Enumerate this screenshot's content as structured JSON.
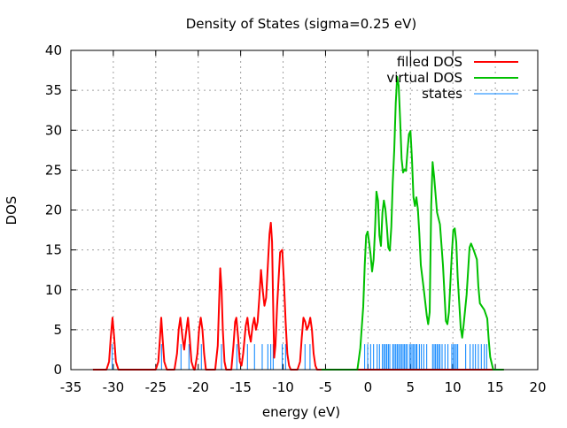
{
  "chart_data": {
    "type": "line",
    "title": "Density of States (sigma=0.25 eV)",
    "xlabel": "energy (eV)",
    "ylabel": "DOS",
    "xlim": [
      -35,
      20
    ],
    "ylim": [
      0,
      40
    ],
    "xticks": [
      -35,
      -30,
      -25,
      -20,
      -15,
      -10,
      -5,
      0,
      5,
      10,
      15,
      20
    ],
    "yticks": [
      0,
      5,
      10,
      15,
      20,
      25,
      30,
      35,
      40
    ],
    "grid": true,
    "legend_position": "top-right",
    "series": [
      {
        "name": "filled DOS",
        "color": "#ff0000",
        "kind": "line",
        "points": [
          [
            -32.4,
            0
          ],
          [
            -30.8,
            0
          ],
          [
            -30.5,
            1
          ],
          [
            -30.3,
            4
          ],
          [
            -30.1,
            6.5
          ],
          [
            -29.9,
            4
          ],
          [
            -29.7,
            1
          ],
          [
            -29.4,
            0
          ],
          [
            -25,
            0
          ],
          [
            -24.7,
            1
          ],
          [
            -24.5,
            4
          ],
          [
            -24.35,
            6.5
          ],
          [
            -24.2,
            4
          ],
          [
            -24.0,
            1
          ],
          [
            -23.7,
            0
          ],
          [
            -22.8,
            0
          ],
          [
            -22.5,
            2
          ],
          [
            -22.3,
            5
          ],
          [
            -22.1,
            6.5
          ],
          [
            -21.85,
            4
          ],
          [
            -21.65,
            2.5
          ],
          [
            -21.45,
            4.5
          ],
          [
            -21.2,
            6.5
          ],
          [
            -21.0,
            4
          ],
          [
            -20.8,
            1
          ],
          [
            -20.5,
            0
          ],
          [
            -20.4,
            0
          ],
          [
            -20.1,
            2
          ],
          [
            -19.9,
            5
          ],
          [
            -19.7,
            6.5
          ],
          [
            -19.5,
            5
          ],
          [
            -19.3,
            2
          ],
          [
            -19.1,
            0
          ],
          [
            -18.0,
            0
          ],
          [
            -17.7,
            3
          ],
          [
            -17.55,
            8
          ],
          [
            -17.4,
            12.7
          ],
          [
            -17.25,
            10
          ],
          [
            -17.1,
            5
          ],
          [
            -16.9,
            1
          ],
          [
            -16.7,
            0
          ],
          [
            -16.1,
            0
          ],
          [
            -15.85,
            3
          ],
          [
            -15.65,
            6
          ],
          [
            -15.5,
            6.5
          ],
          [
            -15.3,
            4
          ],
          [
            -15.1,
            1
          ],
          [
            -14.9,
            0.5
          ],
          [
            -14.7,
            2
          ],
          [
            -14.4,
            5.5
          ],
          [
            -14.2,
            6.5
          ],
          [
            -14.0,
            4.5
          ],
          [
            -13.8,
            3.5
          ],
          [
            -13.6,
            5.5
          ],
          [
            -13.4,
            6.5
          ],
          [
            -13.2,
            5
          ],
          [
            -13.0,
            6
          ],
          [
            -12.8,
            9
          ],
          [
            -12.6,
            12.5
          ],
          [
            -12.4,
            10
          ],
          [
            -12.2,
            8
          ],
          [
            -12.0,
            9
          ],
          [
            -11.8,
            13
          ],
          [
            -11.6,
            17
          ],
          [
            -11.45,
            18.4
          ],
          [
            -11.3,
            16
          ],
          [
            -11.2,
            10
          ],
          [
            -11.05,
            1.5
          ],
          [
            -10.9,
            3
          ],
          [
            -10.7,
            8
          ],
          [
            -10.5,
            12
          ],
          [
            -10.35,
            14.7
          ],
          [
            -10.1,
            15
          ],
          [
            -9.9,
            11
          ],
          [
            -9.7,
            6
          ],
          [
            -9.5,
            2
          ],
          [
            -9.3,
            0.5
          ],
          [
            -9.1,
            0
          ],
          [
            -8.3,
            0
          ],
          [
            -8.0,
            1
          ],
          [
            -7.8,
            4
          ],
          [
            -7.6,
            6.5
          ],
          [
            -7.4,
            6
          ],
          [
            -7.2,
            5
          ],
          [
            -7.0,
            5.5
          ],
          [
            -6.8,
            6.5
          ],
          [
            -6.6,
            5
          ],
          [
            -6.4,
            2
          ],
          [
            -6.2,
            0.5
          ],
          [
            -6.0,
            0
          ],
          [
            16,
            0
          ]
        ]
      },
      {
        "name": "virtual DOS",
        "color": "#00c000",
        "kind": "line",
        "points": [
          [
            -5.5,
            0
          ],
          [
            -1.25,
            0
          ],
          [
            -0.9,
            2.7
          ],
          [
            -0.56,
            7.9
          ],
          [
            -0.38,
            13.1
          ],
          [
            -0.22,
            16.8
          ],
          [
            -0.04,
            17.3
          ],
          [
            0.13,
            16
          ],
          [
            0.3,
            14.5
          ],
          [
            0.48,
            12.3
          ],
          [
            0.66,
            13.8
          ],
          [
            0.83,
            17.5
          ],
          [
            1.0,
            22.3
          ],
          [
            1.18,
            21.2
          ],
          [
            1.35,
            16.8
          ],
          [
            1.53,
            15.5
          ],
          [
            1.7,
            19.7
          ],
          [
            1.87,
            21.2
          ],
          [
            2.05,
            20.1
          ],
          [
            2.23,
            17.9
          ],
          [
            2.39,
            15.3
          ],
          [
            2.57,
            14.9
          ],
          [
            2.75,
            17.9
          ],
          [
            2.92,
            23.4
          ],
          [
            3.09,
            27.5
          ],
          [
            3.27,
            33.4
          ],
          [
            3.44,
            36.7
          ],
          [
            3.61,
            35.6
          ],
          [
            3.79,
            31.2
          ],
          [
            3.96,
            26.4
          ],
          [
            4.14,
            24.7
          ],
          [
            4.31,
            25.1
          ],
          [
            4.48,
            24.9
          ],
          [
            4.66,
            27.5
          ],
          [
            4.83,
            29.5
          ],
          [
            5.0,
            29.9
          ],
          [
            5.18,
            26.4
          ],
          [
            5.36,
            21.6
          ],
          [
            5.53,
            20.5
          ],
          [
            5.7,
            21.6
          ],
          [
            5.88,
            20.1
          ],
          [
            6.05,
            17.1
          ],
          [
            6.22,
            13.1
          ],
          [
            6.57,
            10.1
          ],
          [
            6.92,
            6.8
          ],
          [
            7.09,
            5.7
          ],
          [
            7.27,
            7.2
          ],
          [
            7.44,
            20.5
          ],
          [
            7.61,
            26.0
          ],
          [
            7.79,
            24.2
          ],
          [
            8.13,
            19.7
          ],
          [
            8.48,
            18.2
          ],
          [
            8.83,
            13.1
          ],
          [
            9.18,
            6.1
          ],
          [
            9.35,
            5.7
          ],
          [
            9.53,
            7.2
          ],
          [
            9.88,
            14.5
          ],
          [
            10.05,
            17.5
          ],
          [
            10.22,
            17.7
          ],
          [
            10.4,
            16
          ],
          [
            10.57,
            11.6
          ],
          [
            10.92,
            5.3
          ],
          [
            11.1,
            4.0
          ],
          [
            11.27,
            5.7
          ],
          [
            11.62,
            9.4
          ],
          [
            11.96,
            15.3
          ],
          [
            12.14,
            15.8
          ],
          [
            12.48,
            14.9
          ],
          [
            12.83,
            13.8
          ],
          [
            13.0,
            10.5
          ],
          [
            13.18,
            8.3
          ],
          [
            13.7,
            7.5
          ],
          [
            14.05,
            6.4
          ],
          [
            14.22,
            3.8
          ],
          [
            14.4,
            1.6
          ],
          [
            14.75,
            0
          ],
          [
            16,
            0
          ]
        ]
      },
      {
        "name": "states",
        "color": "#0080ff",
        "kind": "impulses",
        "height": 3.2,
        "x": [
          -30.13,
          -24.32,
          -22.03,
          -21.09,
          -19.63,
          -17.26,
          -15.45,
          -14.2,
          -13.37,
          -12.46,
          -11.8,
          -11.45,
          -11.17,
          -10.1,
          -9.71,
          -7.42,
          -6.83,
          -0.39,
          -0.04,
          0.31,
          0.66,
          1.08,
          1.35,
          1.7,
          1.88,
          2.05,
          2.22,
          2.4,
          2.57,
          2.92,
          3.09,
          3.27,
          3.44,
          3.61,
          3.79,
          3.96,
          4.14,
          4.31,
          4.48,
          4.66,
          4.94,
          5.08,
          5.28,
          5.42,
          5.63,
          5.77,
          6.05,
          6.29,
          6.57,
          6.92,
          7.61,
          7.79,
          7.96,
          8.14,
          8.31,
          8.48,
          8.73,
          9.07,
          9.42,
          9.87,
          10.05,
          10.22,
          10.4,
          10.57,
          11.51,
          12.03,
          12.38,
          12.66,
          13.0,
          13.35,
          13.7,
          13.98
        ]
      }
    ]
  }
}
